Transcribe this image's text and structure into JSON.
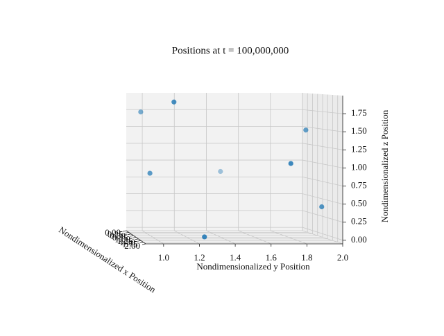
{
  "chart_data": {
    "type": "scatter3d",
    "title": "Positions at t = 100,000,000",
    "xlabel": "Nondimensionalized x Position",
    "ylabel": "Nondimensionalized y Position",
    "zlabel": "Nondimensionalized z Position",
    "color": "#1f77b4",
    "x": [
      0.8,
      1.5,
      1.2,
      0.3,
      1.6,
      1.1,
      1.3,
      1.7
    ],
    "y": [
      0.94,
      1.09,
      0.97,
      1.46,
      1.75,
      1.89,
      1.96,
      1.25
    ],
    "z": [
      1.74,
      1.9,
      0.88,
      0.85,
      1.04,
      1.49,
      0.41,
      0.02
    ],
    "xlim": [
      0,
      2
    ],
    "ylim": [
      0.9,
      2.0
    ],
    "zlim": [
      -0.05,
      2.0
    ],
    "xticks": [
      {
        "value": 0,
        "label": "0.00"
      },
      0.25,
      {
        "value": 0.5,
        "label": "0.50"
      },
      0.75,
      {
        "value": 1,
        "label": "1.00"
      },
      1.25,
      {
        "value": 1.5,
        "label": "1.50"
      },
      1.75,
      {
        "value": 2,
        "label": "2.00"
      }
    ],
    "yticks": [
      {
        "value": 1,
        "label": "1.0"
      },
      1.2,
      1.4,
      1.6,
      1.8,
      {
        "value": 2,
        "label": "2.0"
      }
    ],
    "zticks": [
      {
        "value": 0,
        "label": "0.00"
      },
      0.25,
      {
        "value": 0.5,
        "label": "0.50"
      },
      0.75,
      {
        "value": 1,
        "label": "1.00"
      },
      1.25,
      {
        "value": 1.5,
        "label": "1.50"
      },
      1.75
    ],
    "grid": true
  }
}
